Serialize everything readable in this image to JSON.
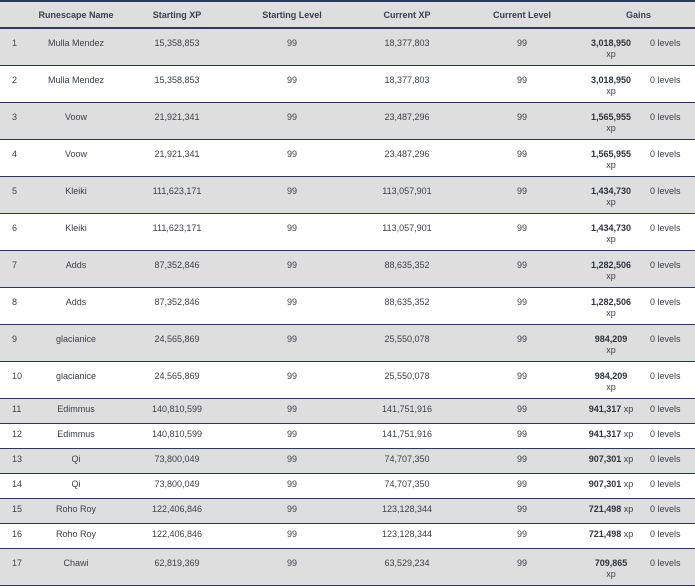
{
  "headers": [
    "",
    "Runescape Name",
    "Starting XP",
    "Starting Level",
    "Current XP",
    "Current Level",
    "Gains"
  ],
  "xp_unit": "xp",
  "rows": [
    {
      "idx": "1",
      "name": "Mulla Mendez",
      "start_xp": "15,358,853",
      "start_lvl": "99",
      "cur_xp": "18,377,803",
      "cur_lvl": "99",
      "gain_xp": "3,018,950",
      "gain_lvl": "0 levels",
      "wrap": true
    },
    {
      "idx": "2",
      "name": "Mulla Mendez",
      "start_xp": "15,358,853",
      "start_lvl": "99",
      "cur_xp": "18,377,803",
      "cur_lvl": "99",
      "gain_xp": "3,018,950",
      "gain_lvl": "0 levels",
      "wrap": true
    },
    {
      "idx": "3",
      "name": "Voow",
      "start_xp": "21,921,341",
      "start_lvl": "99",
      "cur_xp": "23,487,296",
      "cur_lvl": "99",
      "gain_xp": "1,565,955",
      "gain_lvl": "0 levels",
      "wrap": true
    },
    {
      "idx": "4",
      "name": "Voow",
      "start_xp": "21,921,341",
      "start_lvl": "99",
      "cur_xp": "23,487,296",
      "cur_lvl": "99",
      "gain_xp": "1,565,955",
      "gain_lvl": "0 levels",
      "wrap": true
    },
    {
      "idx": "5",
      "name": "Kleiki",
      "start_xp": "111,623,171",
      "start_lvl": "99",
      "cur_xp": "113,057,901",
      "cur_lvl": "99",
      "gain_xp": "1,434,730",
      "gain_lvl": "0 levels",
      "wrap": true
    },
    {
      "idx": "6",
      "name": "Kleiki",
      "start_xp": "111,623,171",
      "start_lvl": "99",
      "cur_xp": "113,057,901",
      "cur_lvl": "99",
      "gain_xp": "1,434,730",
      "gain_lvl": "0 levels",
      "wrap": true
    },
    {
      "idx": "7",
      "name": "Adds",
      "start_xp": "87,352,846",
      "start_lvl": "99",
      "cur_xp": "88,635,352",
      "cur_lvl": "99",
      "gain_xp": "1,282,506",
      "gain_lvl": "0 levels",
      "wrap": true
    },
    {
      "idx": "8",
      "name": "Adds",
      "start_xp": "87,352,846",
      "start_lvl": "99",
      "cur_xp": "88,635,352",
      "cur_lvl": "99",
      "gain_xp": "1,282,506",
      "gain_lvl": "0 levels",
      "wrap": true
    },
    {
      "idx": "9",
      "name": "glacianice",
      "start_xp": "24,565,869",
      "start_lvl": "99",
      "cur_xp": "25,550,078",
      "cur_lvl": "99",
      "gain_xp": "984,209",
      "gain_lvl": "0 levels",
      "wrap": true
    },
    {
      "idx": "10",
      "name": "glacianice",
      "start_xp": "24,565,869",
      "start_lvl": "99",
      "cur_xp": "25,550,078",
      "cur_lvl": "99",
      "gain_xp": "984,209",
      "gain_lvl": "0 levels",
      "wrap": true
    },
    {
      "idx": "11",
      "name": "Edimmus",
      "start_xp": "140,810,599",
      "start_lvl": "99",
      "cur_xp": "141,751,916",
      "cur_lvl": "99",
      "gain_xp": "941,317",
      "gain_lvl": "0 levels",
      "wrap": false
    },
    {
      "idx": "12",
      "name": "Edimmus",
      "start_xp": "140,810,599",
      "start_lvl": "99",
      "cur_xp": "141,751,916",
      "cur_lvl": "99",
      "gain_xp": "941,317",
      "gain_lvl": "0 levels",
      "wrap": false
    },
    {
      "idx": "13",
      "name": "Qi",
      "start_xp": "73,800,049",
      "start_lvl": "99",
      "cur_xp": "74,707,350",
      "cur_lvl": "99",
      "gain_xp": "907,301",
      "gain_lvl": "0 levels",
      "wrap": false
    },
    {
      "idx": "14",
      "name": "Qi",
      "start_xp": "73,800,049",
      "start_lvl": "99",
      "cur_xp": "74,707,350",
      "cur_lvl": "99",
      "gain_xp": "907,301",
      "gain_lvl": "0 levels",
      "wrap": false
    },
    {
      "idx": "15",
      "name": "Roho Roy",
      "start_xp": "122,406,846",
      "start_lvl": "99",
      "cur_xp": "123,128,344",
      "cur_lvl": "99",
      "gain_xp": "721,498",
      "gain_lvl": "0 levels",
      "wrap": false
    },
    {
      "idx": "16",
      "name": "Roho Roy",
      "start_xp": "122,406,846",
      "start_lvl": "99",
      "cur_xp": "123,128,344",
      "cur_lvl": "99",
      "gain_xp": "721,498",
      "gain_lvl": "0 levels",
      "wrap": false
    },
    {
      "idx": "17",
      "name": "Chawi",
      "start_xp": "62,819,369",
      "start_lvl": "99",
      "cur_xp": "63,529,234",
      "cur_lvl": "99",
      "gain_xp": "709,865",
      "gain_lvl": "0 levels",
      "wrap": true
    }
  ]
}
